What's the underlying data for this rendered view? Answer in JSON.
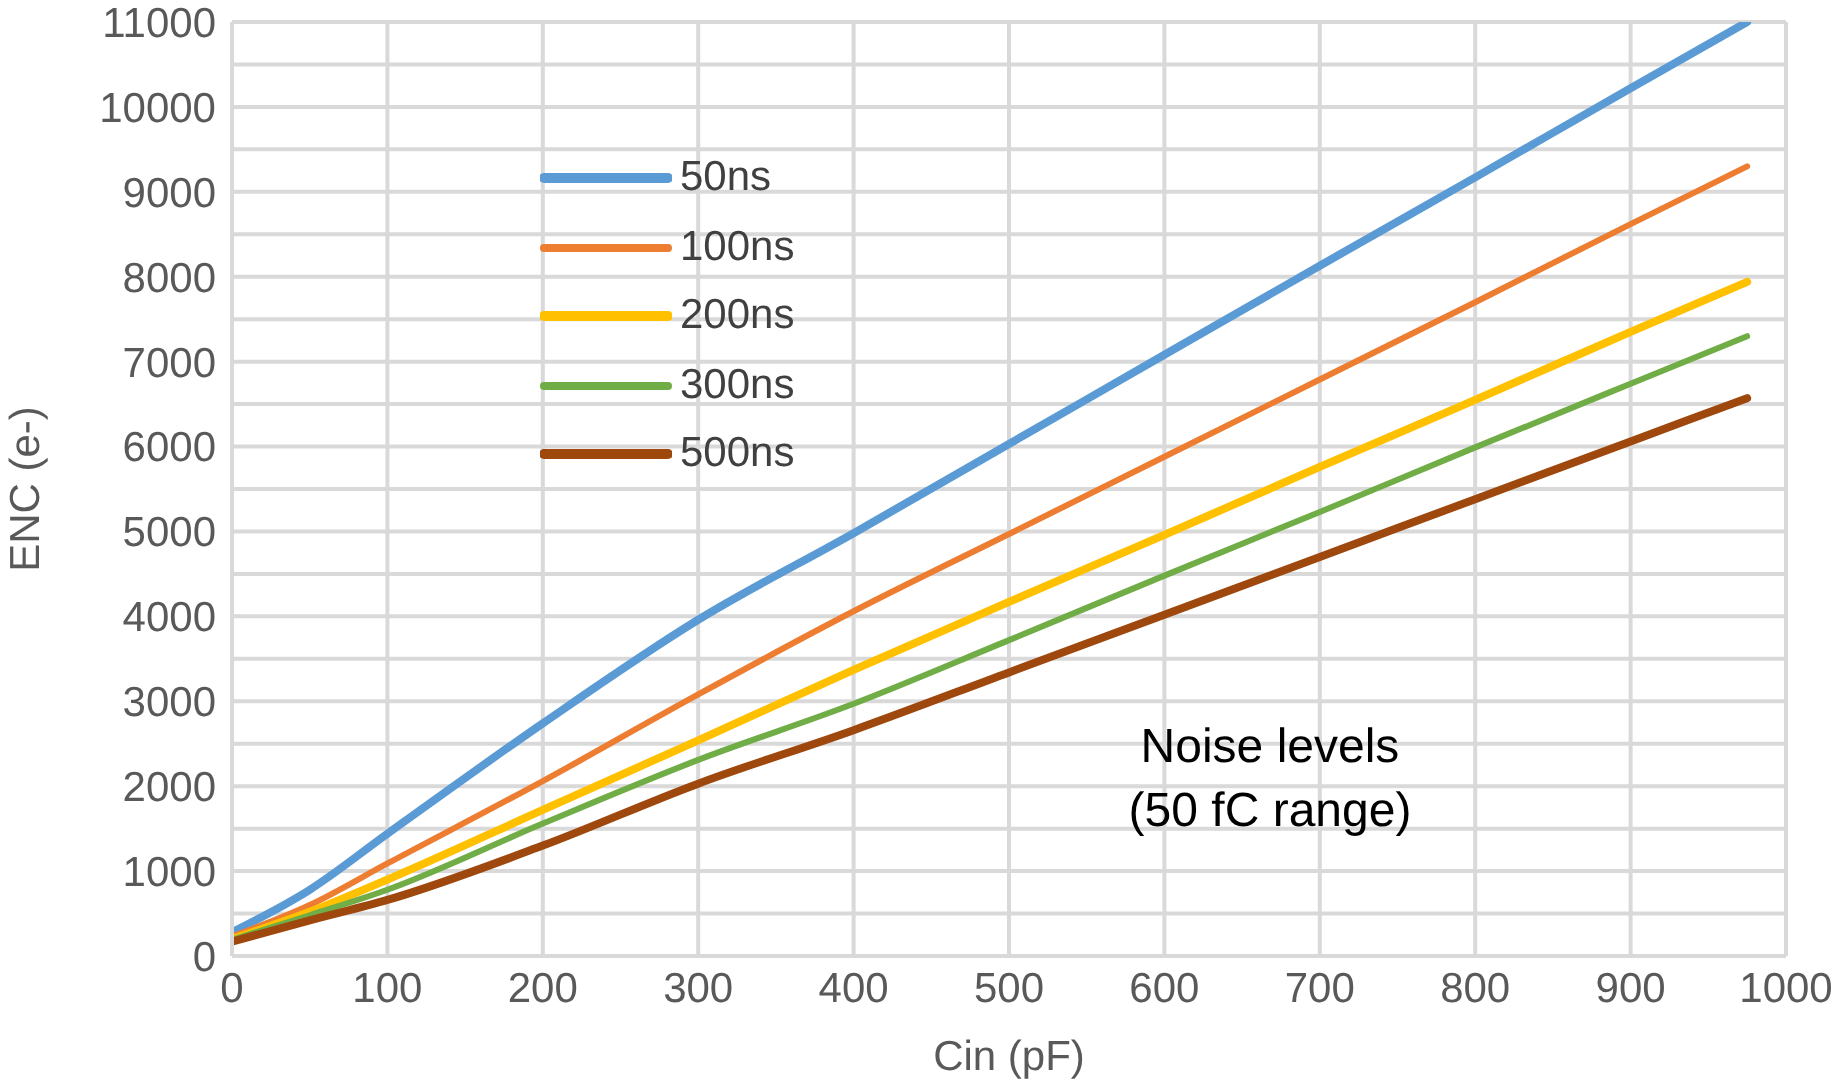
{
  "chart_data": {
    "type": "line",
    "xlabel": "Cin (pF)",
    "ylabel": "ENC (e-)",
    "x": [
      0,
      50,
      100,
      200,
      300,
      400,
      500,
      600,
      700,
      800,
      900,
      975
    ],
    "series": [
      {
        "name": "50ns",
        "color": "#5b9bd5",
        "values": [
          280,
          780,
          1440,
          2740,
          3960,
          4980,
          6030,
          7080,
          8130,
          9170,
          10220,
          11000
        ]
      },
      {
        "name": "100ns",
        "color": "#ed7d31",
        "values": [
          230,
          600,
          1090,
          2060,
          3080,
          4060,
          4970,
          5880,
          6790,
          7700,
          8620,
          9300
        ]
      },
      {
        "name": "200ns",
        "color": "#ffc000",
        "values": [
          200,
          520,
          900,
          1720,
          2540,
          3370,
          4170,
          4960,
          5760,
          6550,
          7350,
          7940
        ]
      },
      {
        "name": "300ns",
        "color": "#70ad47",
        "values": [
          190,
          480,
          780,
          1560,
          2310,
          2970,
          3720,
          4480,
          5230,
          5990,
          6740,
          7300
        ]
      },
      {
        "name": "500ns",
        "color": "#9e480e",
        "values": [
          170,
          420,
          660,
          1300,
          2030,
          2660,
          3340,
          4020,
          4700,
          5380,
          6060,
          6570
        ]
      }
    ],
    "xlim": [
      0,
      1000
    ],
    "xticks": [
      0,
      100,
      200,
      300,
      400,
      500,
      600,
      700,
      800,
      900,
      1000
    ],
    "ylim": [
      0,
      11000
    ],
    "yticks": [
      0,
      {
        "value": 500,
        "label": null
      },
      1000,
      {
        "value": 1500,
        "label": null
      },
      2000,
      {
        "value": 2500,
        "label": null
      },
      3000,
      {
        "value": 3500,
        "label": null
      },
      4000,
      {
        "value": 4500,
        "label": null
      },
      5000,
      {
        "value": 5500,
        "label": null
      },
      6000,
      {
        "value": 6500,
        "label": null
      },
      7000,
      {
        "value": 7500,
        "label": null
      },
      8000,
      {
        "value": 8500,
        "label": null
      },
      9000,
      {
        "value": 9500,
        "label": null
      },
      10000,
      {
        "value": 10500,
        "label": null
      },
      11000
    ],
    "grid": true,
    "legend": "top left",
    "marker": "none",
    "line_style": "solid",
    "annotations": [
      "Noise levels\n(50 fC range)"
    ]
  }
}
